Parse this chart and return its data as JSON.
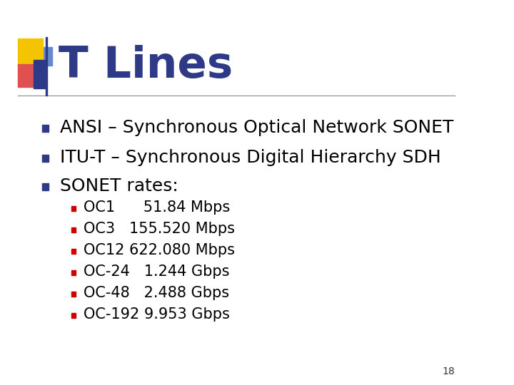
{
  "title": "T Lines",
  "title_color": "#2E3A87",
  "title_fontsize": 44,
  "background_color": "#ffffff",
  "bullet_color": "#2E3A87",
  "sub_bullet_color": "#CC0000",
  "text_color": "#000000",
  "bullet_items": [
    "ANSI – Synchronous Optical Network SONET",
    "ITU-T – Synchronous Digital Hierarchy SDH",
    "SONET rates:"
  ],
  "sub_bullet_items": [
    "OC1      51.84 Mbps",
    "OC3   155.520 Mbps",
    "OC12 622.080 Mbps",
    "OC-24   1.244 Gbps",
    "OC-48   2.488 Gbps",
    "OC-192 9.953 Gbps"
  ],
  "slide_number": "18",
  "decoration_colors": {
    "yellow": "#F5C400",
    "red": "#E05050",
    "blue_dark": "#2E3A87",
    "blue_light": "#6688CC"
  },
  "line_color": "#888888"
}
